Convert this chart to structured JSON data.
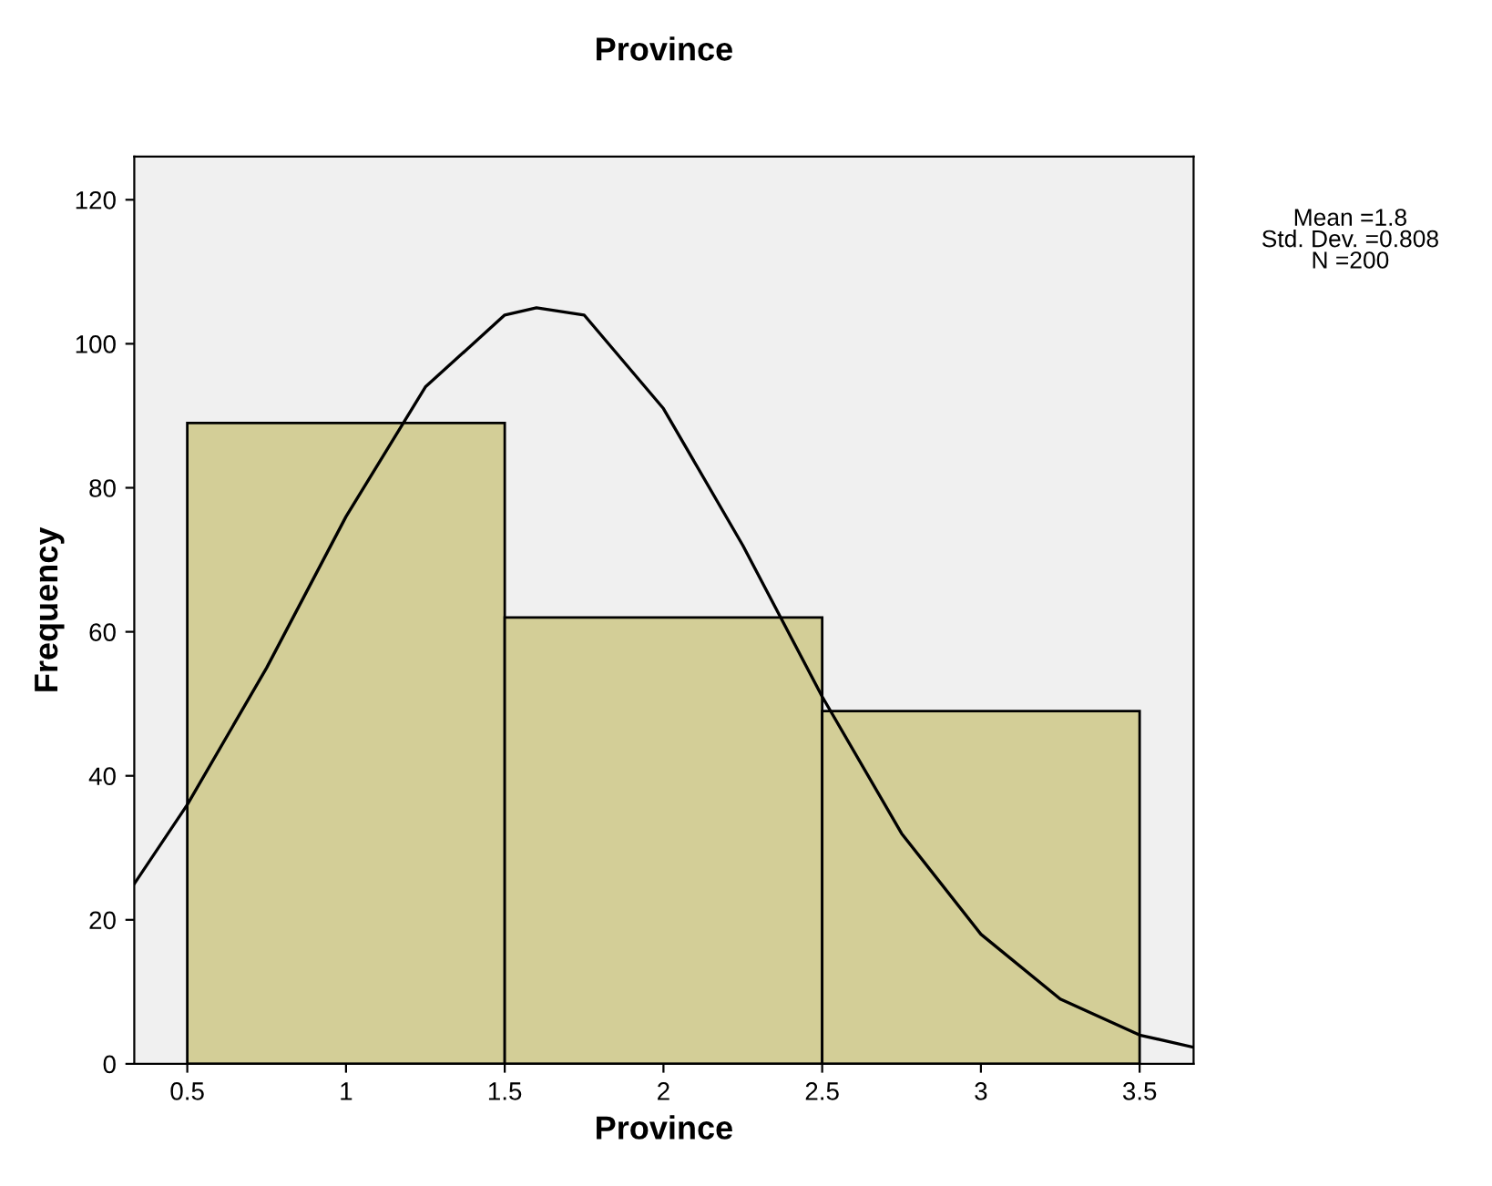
{
  "chart_data": {
    "type": "histogram",
    "title": "Province",
    "xlabel": "Province",
    "ylabel": "Frequency",
    "bins": [
      0.5,
      1.5,
      2.5,
      3.5
    ],
    "series": [
      {
        "color": "#d3ce97",
        "values": [
          89,
          62,
          49
        ]
      },
      {
        "type": "line",
        "color": "#000000",
        "x": [
          0.333,
          0.5,
          0.75,
          1.0,
          1.25,
          1.5,
          1.6,
          1.75,
          2.0,
          2.25,
          2.5,
          2.75,
          3.0,
          3.25,
          3.5,
          3.67
        ],
        "values": [
          25,
          36,
          55,
          76,
          94,
          104,
          105,
          104,
          91,
          72,
          51,
          32,
          18,
          9,
          4,
          2.3
        ]
      }
    ],
    "xlim": [
      0.333,
      3.67
    ],
    "ylim": [
      0,
      126
    ],
    "xticks": [
      0.5,
      1,
      1.5,
      2,
      2.5,
      3,
      3.5
    ],
    "yticks": [
      0,
      20,
      40,
      60,
      80,
      100,
      120
    ],
    "annotations": [
      "Mean =1.8",
      "Std. Dev. =0.808",
      "N =200"
    ],
    "grid": false,
    "legend": false,
    "marker": "none",
    "line_style": "solid"
  }
}
